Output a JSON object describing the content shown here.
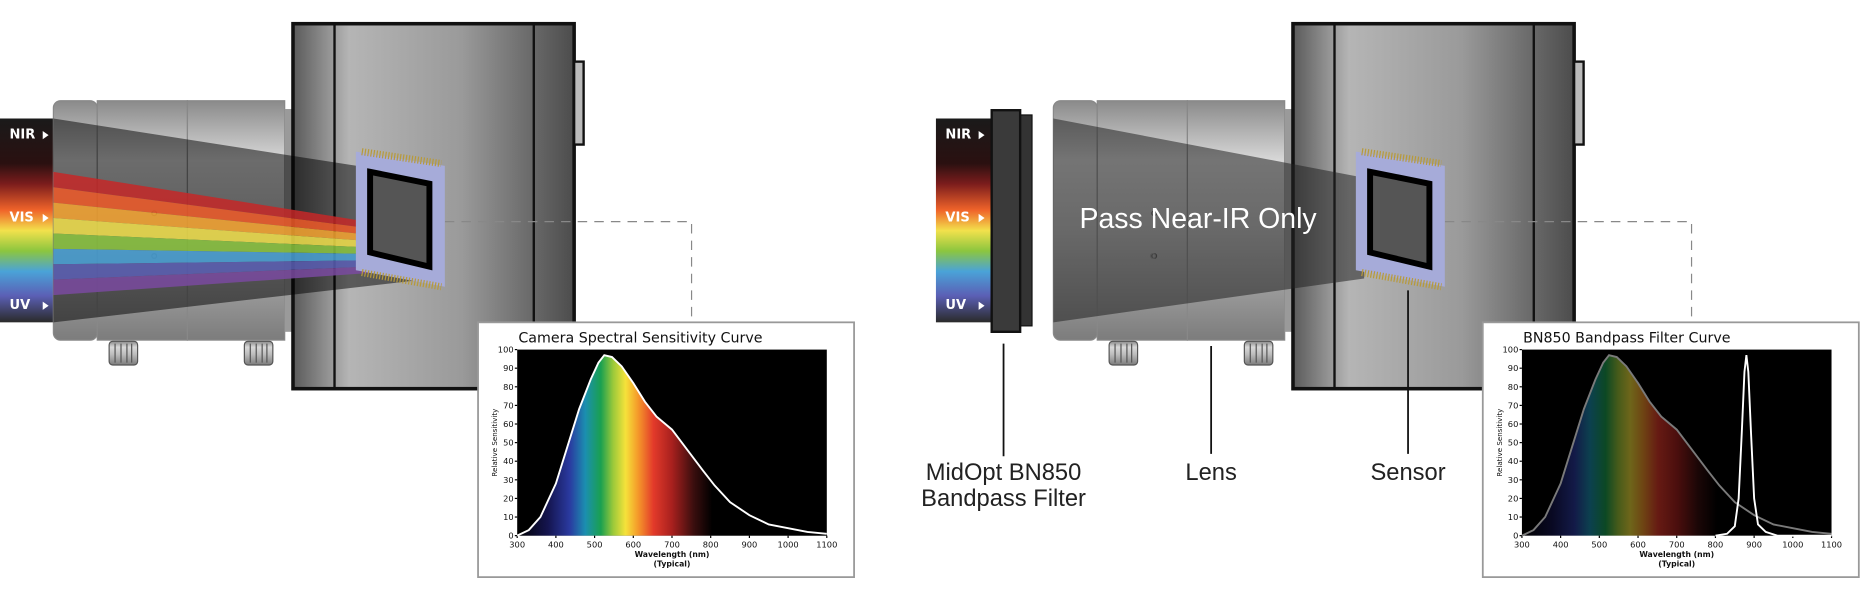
{
  "left_panel": {
    "spectrum_labels": [
      "NIR",
      "VIS",
      "UV"
    ],
    "chart": {
      "type": "line",
      "title": "Camera Spectral Sensitivity Curve",
      "y_label": "Relative Sensitivity",
      "x_label": "Wavelength (nm)",
      "x_sublabel": "(Typical)",
      "xlim": [
        300,
        1100
      ],
      "ylim": [
        0,
        100
      ],
      "xticks": [
        300,
        400,
        500,
        600,
        700,
        800,
        900,
        1000,
        1100
      ],
      "yticks": [
        0,
        10,
        20,
        30,
        40,
        50,
        60,
        70,
        80,
        90,
        100
      ],
      "series": [
        {
          "color": "#ffffff",
          "x": [
            300,
            330,
            360,
            400,
            430,
            460,
            490,
            510,
            525,
            545,
            570,
            600,
            630,
            660,
            700,
            740,
            780,
            810,
            850,
            900,
            950,
            1000,
            1050,
            1100
          ],
          "values": [
            0,
            3,
            10,
            28,
            48,
            68,
            84,
            93,
            97,
            96,
            91,
            82,
            72,
            64,
            57,
            46,
            35,
            27,
            18,
            11,
            6,
            4,
            2,
            1
          ]
        }
      ]
    }
  },
  "right_panel": {
    "spectrum_labels": [
      "NIR",
      "VIS",
      "UV"
    ],
    "beam_label": "Pass Near-IR Only",
    "callouts": {
      "filter": [
        "MidOpt BN850",
        "Bandpass Filter"
      ],
      "lens": "Lens",
      "sensor": "Sensor"
    },
    "chart": {
      "type": "line",
      "title": "BN850 Bandpass Filter Curve",
      "y_label": "Relative Sensitivity",
      "x_label": "Wavelength (nm)",
      "x_sublabel": "(Typical)",
      "xlim": [
        300,
        1100
      ],
      "ylim": [
        0,
        100
      ],
      "xticks": [
        300,
        400,
        500,
        600,
        700,
        800,
        900,
        1000,
        1100
      ],
      "yticks": [
        0,
        10,
        20,
        30,
        40,
        50,
        60,
        70,
        80,
        90,
        100
      ],
      "series": [
        {
          "color": "#7a7a7a",
          "x": [
            300,
            330,
            360,
            400,
            430,
            460,
            490,
            510,
            525,
            545,
            570,
            600,
            630,
            660,
            700,
            740,
            780,
            810,
            850,
            900,
            950,
            1000,
            1050,
            1100
          ],
          "values": [
            0,
            3,
            10,
            28,
            48,
            68,
            84,
            93,
            97,
            96,
            91,
            82,
            72,
            64,
            57,
            46,
            35,
            27,
            18,
            11,
            6,
            4,
            2,
            1
          ]
        },
        {
          "color": "#ffffff",
          "x": [
            800,
            830,
            850,
            860,
            868,
            875,
            880,
            885,
            892,
            900,
            910,
            930,
            960,
            1100
          ],
          "values": [
            0,
            1,
            5,
            20,
            55,
            88,
            97,
            88,
            55,
            20,
            6,
            2,
            0,
            0
          ]
        }
      ]
    }
  }
}
